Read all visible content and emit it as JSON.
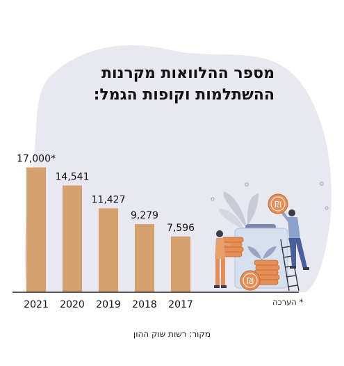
{
  "title_line1": "מספר ההלוואות מקרנות",
  "title_line2": "ההשתלמות וקופות הגמל:",
  "footnote": "* הערכה",
  "source": "מקור: רשות שוק ההון",
  "colors": {
    "bar": "#d4a06d",
    "blob": "#e8e9f0",
    "axis": "#222222",
    "text": "#111111"
  },
  "chart_data": {
    "type": "bar",
    "title": "מספר ההלוואות מקרנות ההשתלמות וקופות הגמל:",
    "categories": [
      "2021",
      "2020",
      "2019",
      "2018",
      "2017"
    ],
    "values": [
      17000,
      14541,
      11427,
      9279,
      7596
    ],
    "labels": [
      "17,000*",
      "14,541",
      "11,427",
      "9,279",
      "7,596"
    ],
    "ylim": [
      0,
      18000
    ],
    "grid": false
  }
}
